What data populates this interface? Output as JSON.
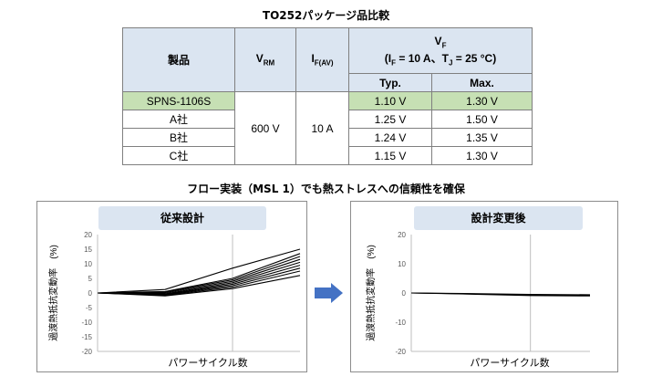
{
  "table_title": "TO252パッケージ品比較",
  "table": {
    "header": {
      "product": "製品",
      "vrm_main": "V",
      "vrm_sub": "RM",
      "if_main": "I",
      "if_sub": "F(AV)",
      "vf_main": "V",
      "vf_sub": "F",
      "vf_cond_a": "(I",
      "vf_cond_a_sub": "F",
      "vf_cond_b": " = 10 A、T",
      "vf_cond_b_sub": "J",
      "vf_cond_c": " = 25 °C)",
      "typ": "Typ.",
      "max": "Max."
    },
    "rows": [
      {
        "product": "SPNS-1106S",
        "typ": "1.10 V",
        "max": "1.30 V"
      },
      {
        "product": "A社",
        "typ": "1.25 V",
        "max": "1.50 V"
      },
      {
        "product": "B社",
        "typ": "1.24 V",
        "max": "1.35 V"
      },
      {
        "product": "C社",
        "typ": "1.15 V",
        "max": "1.30 V"
      }
    ],
    "vrm_value": "600 V",
    "if_value": "10 A"
  },
  "section_title": "フロー実装（MSL 1）でも熱ストレスへの信頼性を確保",
  "colors": {
    "header_bg": "#dbe5f1",
    "highlight_bg": "#c6e0b4",
    "arrow": "#4472c4"
  },
  "icons": {
    "arrow": "right-arrow-icon"
  },
  "chart_data": [
    {
      "type": "line",
      "title": "従来設計",
      "xlabel": "パワーサイクル数",
      "ylabel": "過渡熱抵抗変動率　(%)",
      "ylim": [
        -20,
        20
      ],
      "yticks": [
        20,
        15,
        10,
        5,
        0,
        -5,
        -10,
        -15,
        -20
      ],
      "x": [
        0,
        1,
        2,
        3
      ],
      "grid": "vertical at x=2",
      "series": [
        {
          "values": [
            0,
            1.2,
            8.5,
            15
          ]
        },
        {
          "values": [
            0,
            0.5,
            5,
            13.5
          ]
        },
        {
          "values": [
            0,
            0.3,
            4.5,
            12.5
          ]
        },
        {
          "values": [
            0,
            0,
            4,
            11.5
          ]
        },
        {
          "values": [
            0,
            -0.3,
            3.5,
            10.5
          ]
        },
        {
          "values": [
            0,
            -0.5,
            3,
            9.5
          ]
        },
        {
          "values": [
            0,
            -0.6,
            2.5,
            8.5
          ]
        },
        {
          "values": [
            0,
            -0.8,
            2,
            7.5
          ]
        },
        {
          "values": [
            0,
            -1.0,
            1.5,
            6
          ]
        }
      ]
    },
    {
      "type": "line",
      "title": "設計変更後",
      "xlabel": "パワーサイクル数",
      "ylabel": "過渡熱抵抗変動率　(%)",
      "ylim": [
        -20,
        20
      ],
      "yticks": [
        20,
        10,
        0,
        -10,
        -20
      ],
      "x": [
        0,
        1,
        2,
        3
      ],
      "grid": "vertical at x=2",
      "series": [
        {
          "values": [
            0,
            -0.4,
            -0.9,
            -1.0
          ]
        },
        {
          "values": [
            0,
            -0.3,
            -0.7,
            -0.8
          ]
        },
        {
          "values": [
            0,
            -0.2,
            -0.5,
            -0.6
          ]
        }
      ]
    }
  ]
}
